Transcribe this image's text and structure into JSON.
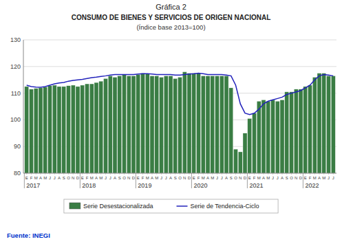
{
  "chart_data": {
    "type": "bar",
    "title": "Gráfica 2",
    "subtitle": "CONSUMO DE BIENES Y SERVICIOS DE ORIGEN NACIONAL",
    "annotations": [
      "(Índice base 2013=100)",
      "Fuente: INEGI"
    ],
    "categories": [
      "E",
      "F",
      "M",
      "A",
      "M",
      "J",
      "J",
      "A",
      "S",
      "O",
      "N",
      "D",
      "E",
      "F",
      "M",
      "A",
      "M",
      "J",
      "J",
      "A",
      "S",
      "O",
      "N",
      "D",
      "E",
      "F",
      "M",
      "A",
      "M",
      "J",
      "J",
      "A",
      "S",
      "O",
      "N",
      "D",
      "E",
      "F",
      "M",
      "A",
      "M",
      "J",
      "J",
      "A",
      "S",
      "O",
      "N",
      "D",
      "E",
      "F",
      "M",
      "A",
      "M",
      "J",
      "J",
      "A",
      "S",
      "O",
      "N",
      "D",
      "E",
      "F",
      "M",
      "A",
      "M",
      "J",
      "J"
    ],
    "x_groups": [
      {
        "label": "2017",
        "start": 0
      },
      {
        "label": "2018",
        "start": 12
      },
      {
        "label": "2019",
        "start": 24
      },
      {
        "label": "2020",
        "start": 36
      },
      {
        "label": "2021",
        "start": 48
      },
      {
        "label": "2022",
        "start": 60
      }
    ],
    "series": [
      {
        "name": "Serie Desestacionalizada",
        "type": "bar",
        "color": "#3a7d44",
        "values": [
          112.5,
          111.5,
          111.8,
          112.0,
          112.3,
          112.8,
          113.0,
          112.5,
          112.5,
          112.8,
          113.0,
          112.5,
          113.0,
          113.5,
          113.5,
          114.0,
          114.5,
          115.5,
          116.5,
          116.0,
          116.5,
          117.0,
          116.5,
          116.5,
          117.0,
          117.5,
          117.3,
          116.5,
          116.5,
          116.0,
          116.5,
          116.5,
          115.5,
          116.0,
          118.0,
          117.5,
          117.5,
          117.5,
          116.5,
          116.5,
          116.5,
          116.5,
          116.5,
          116.5,
          112.0,
          89.0,
          88.0,
          95.0,
          100.5,
          102.5,
          107.0,
          107.5,
          107.0,
          107.5,
          107.0,
          107.5,
          110.5,
          110.5,
          111.5,
          111.5,
          112.5,
          113.0,
          116.0,
          117.5,
          117.5,
          116.5,
          116.5
        ]
      },
      {
        "name": "Serie de Tendencia-Ciclo",
        "type": "line",
        "color": "#2222bb",
        "values": [
          113.0,
          112.5,
          112.3,
          112.2,
          112.5,
          113.0,
          113.5,
          113.8,
          114.0,
          114.5,
          114.8,
          115.0,
          115.2,
          115.5,
          115.8,
          116.0,
          116.3,
          116.5,
          116.8,
          117.0,
          117.0,
          117.0,
          117.0,
          117.0,
          117.2,
          117.3,
          117.3,
          117.2,
          117.0,
          117.0,
          117.0,
          117.0,
          116.8,
          116.8,
          117.0,
          117.2,
          117.3,
          117.5,
          117.3,
          117.0,
          117.0,
          117.0,
          117.0,
          116.8,
          116.5,
          113.0,
          106.0,
          102.5,
          102.0,
          102.5,
          104.0,
          106.0,
          107.0,
          107.5,
          108.0,
          108.5,
          109.5,
          110.0,
          110.5,
          111.0,
          112.0,
          113.0,
          115.0,
          116.5,
          117.0,
          116.8,
          116.5
        ]
      }
    ],
    "ylim": [
      80,
      130
    ],
    "yticks": [
      80,
      90,
      100,
      110,
      120,
      130
    ],
    "grid": true,
    "legend": "bottom"
  }
}
